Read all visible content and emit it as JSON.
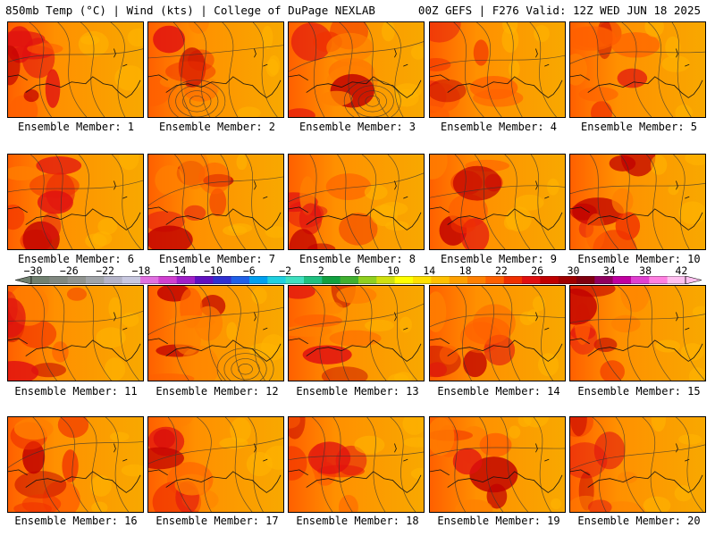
{
  "header": {
    "left": "850mb Temp (°C) | Wind (kts) | College of DuPage NEXLAB",
    "right": "00Z GEFS | F276 Valid: 12Z WED JUN 18 2025"
  },
  "colorbar": {
    "labels": [
      "−30",
      "−26",
      "−22",
      "−18",
      "−14",
      "−10",
      "−6",
      "−2",
      "2",
      "6",
      "10",
      "14",
      "18",
      "22",
      "26",
      "30",
      "34",
      "38",
      "42"
    ],
    "colors": [
      "#708070",
      "#808880",
      "#909490",
      "#a0a4a8",
      "#b4b4c8",
      "#c8c8e0",
      "#e070e0",
      "#d040d0",
      "#a020c8",
      "#6010c0",
      "#3030d0",
      "#2060e8",
      "#00a0f0",
      "#20d0e0",
      "#40e0c0",
      "#20c080",
      "#10a040",
      "#40b030",
      "#90d020",
      "#d0e010",
      "#ffff00",
      "#ffe000",
      "#ffc000",
      "#ffa000",
      "#ff8000",
      "#ff6000",
      "#f03000",
      "#e01010",
      "#c00000",
      "#a00000",
      "#800010",
      "#900060",
      "#c000a0",
      "#e040d0",
      "#ff80e0",
      "#ffc0f0"
    ]
  },
  "panels": [
    {
      "caption": "Ensemble Member: 1"
    },
    {
      "caption": "Ensemble Member: 2"
    },
    {
      "caption": "Ensemble Member: 3"
    },
    {
      "caption": "Ensemble Member: 4"
    },
    {
      "caption": "Ensemble Member: 5"
    },
    {
      "caption": "Ensemble Member: 6"
    },
    {
      "caption": "Ensemble Member: 7"
    },
    {
      "caption": "Ensemble Member: 8"
    },
    {
      "caption": "Ensemble Member: 9"
    },
    {
      "caption": "Ensemble Member: 10"
    },
    {
      "caption": "Ensemble Member: 11"
    },
    {
      "caption": "Ensemble Member: 12"
    },
    {
      "caption": "Ensemble Member: 13"
    },
    {
      "caption": "Ensemble Member: 14"
    },
    {
      "caption": "Ensemble Member: 15"
    },
    {
      "caption": "Ensemble Member: 16"
    },
    {
      "caption": "Ensemble Member: 17"
    },
    {
      "caption": "Ensemble Member: 18"
    },
    {
      "caption": "Ensemble Member: 19"
    },
    {
      "caption": "Ensemble Member: 20"
    }
  ]
}
